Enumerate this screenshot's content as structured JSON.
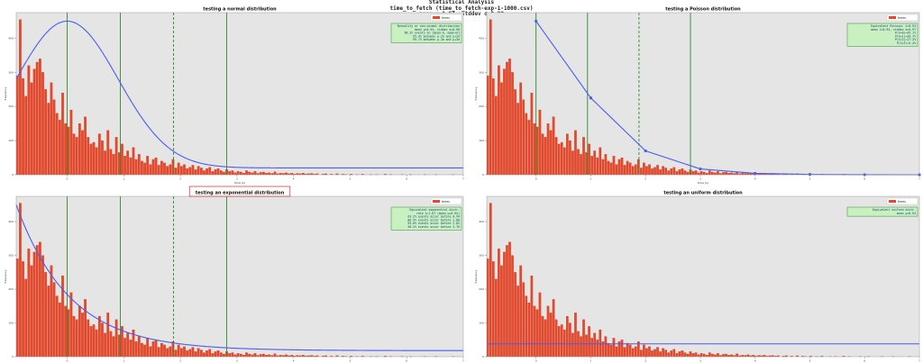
{
  "figure": {
    "suptitle_line1": "Statistical Analysis",
    "suptitle_line2": "time_to_fetch (time_to_fetch-exp-1-1000.csv)",
    "suptitle_line3": "mean μ=0.94, stddev σ=0.98"
  },
  "colors": {
    "background": "#e5e5e5",
    "bars": "#e8472a",
    "bar_edge": "#b83015",
    "curve": "#4a5cf0",
    "vline_solid": "#2e8b2e",
    "vline_dashed": "#2e8b2e",
    "legend_box_bg": "#c8f0c0",
    "legend_box_edge": "#2e8b2e",
    "highlight_box": "#e04040"
  },
  "chart_data": [
    {
      "type": "bar",
      "title": "testing a normal distribution",
      "xlabel": "time (s)",
      "ylabel": "frequency",
      "legend_series": "times",
      "legend_placement": "top-right",
      "grid": false,
      "xlim": [
        -0.9,
        7.0
      ],
      "ylim": [
        0,
        475
      ],
      "x_ticks": [
        0,
        1,
        2,
        3,
        4,
        5,
        6,
        7
      ],
      "y_ticks": [
        0,
        100,
        200,
        300,
        400
      ],
      "overlay": {
        "kind": "normal",
        "mean": 0.0,
        "std": 0.9,
        "scale": 450,
        "floor": 20
      },
      "vlines": [
        {
          "x": 0.0,
          "style": "solid"
        },
        {
          "x": 0.94,
          "style": "solid"
        },
        {
          "x": 1.88,
          "style": "dashed"
        },
        {
          "x": 2.82,
          "style": "solid"
        }
      ],
      "fit_box": [
        "Normality or non-normal distribution",
        "mean μ=0.94, stddev σ=0.98",
        "68.3% events on [mean-σ, mean+σ]",
        "95.4% between μ-2σ and μ+2σ",
        "99.7% between μ-3σ and μ+3σ"
      ],
      "highlight_title": false
    },
    {
      "type": "bar",
      "title": "testing a Poisson distribution",
      "xlabel": "time (s)",
      "ylabel": "frequency",
      "legend_series": "times",
      "legend_placement": "top-right",
      "grid": false,
      "xlim": [
        -0.9,
        7.0
      ],
      "ylim": [
        0,
        475
      ],
      "x_ticks": [
        0,
        1,
        2,
        3,
        4,
        5,
        6,
        7
      ],
      "y_ticks": [
        0,
        100,
        200,
        300,
        400
      ],
      "overlay": {
        "kind": "poisson",
        "points": [
          [
            0,
            450
          ],
          [
            1,
            225
          ],
          [
            2,
            70
          ],
          [
            3,
            17
          ],
          [
            4,
            4
          ],
          [
            5,
            1
          ],
          [
            6,
            0.2
          ],
          [
            7,
            0
          ]
        ]
      },
      "vlines": [
        {
          "x": 0.0,
          "style": "solid"
        },
        {
          "x": 0.94,
          "style": "solid"
        },
        {
          "x": 1.88,
          "style": "dashed"
        },
        {
          "x": 2.82,
          "style": "solid"
        }
      ],
      "fit_box": [
        "Equivalent Poisson: λ=0.94",
        "mean λ=0.94, stddev σ=0.97",
        "P(X=0)=39.1%",
        "P(X=1)=36.7%",
        "P(X=2)=17.3%",
        "P(X=3)=5.4%"
      ],
      "highlight_title": false
    },
    {
      "type": "bar",
      "title": "testing an exponential distribution",
      "xlabel": "time (s)",
      "ylabel": "frequency",
      "legend_series": "times",
      "legend_placement": "top-right",
      "grid": false,
      "xlim": [
        -0.9,
        7.0
      ],
      "ylim": [
        0,
        475
      ],
      "x_ticks": [
        0,
        1,
        2,
        3,
        4,
        5,
        6,
        7
      ],
      "y_ticks": [
        0,
        100,
        200,
        300,
        400
      ],
      "overlay": {
        "kind": "exponential",
        "a": 450,
        "rate": 1.06,
        "offset": -0.9,
        "floor": 18
      },
      "vlines": [
        {
          "x": 0.0,
          "style": "solid"
        },
        {
          "x": 0.94,
          "style": "solid"
        },
        {
          "x": 1.88,
          "style": "dashed"
        },
        {
          "x": 2.82,
          "style": "solid"
        }
      ],
      "fit_box": [
        "Equivalent exponential distr.",
        "rate λ=1.07 (mean μ=0.94)",
        "63.2% events occur before 0.94",
        "86.5% events occur before 1.88",
        "95.0% events occur before 2.82",
        "98.2% events occur before 3.76"
      ],
      "highlight_title": true
    },
    {
      "type": "bar",
      "title": "testing an uniform distribution",
      "xlabel": "time (s)",
      "ylabel": "frequency",
      "legend_series": "times",
      "legend_placement": "top-right",
      "grid": false,
      "xlim": [
        -0.9,
        7.0
      ],
      "ylim": [
        0,
        475
      ],
      "x_ticks": [
        0,
        1,
        2,
        3,
        4,
        5,
        6,
        7
      ],
      "y_ticks": [
        0,
        100,
        200,
        300,
        400
      ],
      "overlay": {
        "kind": "uniform",
        "level": 38
      },
      "vlines": [],
      "fit_box": [
        "Equivalent uniform distr.",
        "mean μ=0.94"
      ],
      "highlight_title": false
    }
  ],
  "histogram": {
    "bin_start": -0.9,
    "bin_width": 0.05,
    "counts": [
      290,
      455,
      282,
      230,
      320,
      270,
      310,
      330,
      340,
      300,
      250,
      210,
      270,
      220,
      180,
      160,
      240,
      150,
      140,
      190,
      120,
      110,
      150,
      130,
      170,
      110,
      90,
      95,
      80,
      120,
      100,
      70,
      130,
      75,
      60,
      110,
      65,
      90,
      55,
      70,
      50,
      80,
      45,
      60,
      40,
      35,
      55,
      30,
      45,
      50,
      28,
      40,
      35,
      25,
      30,
      45,
      20,
      35,
      25,
      30,
      18,
      22,
      28,
      15,
      25,
      20,
      12,
      18,
      22,
      10,
      15,
      18,
      12,
      8,
      15,
      10,
      12,
      6,
      10,
      8,
      5,
      12,
      8,
      6,
      10,
      4,
      7,
      8,
      5,
      6,
      4,
      9,
      3,
      5,
      4,
      6,
      3,
      5,
      2,
      4,
      3,
      5,
      2,
      3,
      4,
      2,
      3,
      0,
      2,
      3,
      0,
      2,
      0,
      3,
      0,
      2,
      1,
      0,
      2,
      0,
      1,
      0,
      2,
      0,
      0,
      1,
      0,
      1,
      0,
      0,
      2,
      0,
      1,
      0,
      0,
      0,
      1,
      0,
      0,
      1,
      0,
      0,
      0,
      0,
      1,
      0,
      0,
      0,
      1,
      0,
      0,
      0,
      0,
      0,
      1,
      0,
      0,
      0,
      0,
      0,
      0,
      0,
      0,
      0
    ]
  }
}
